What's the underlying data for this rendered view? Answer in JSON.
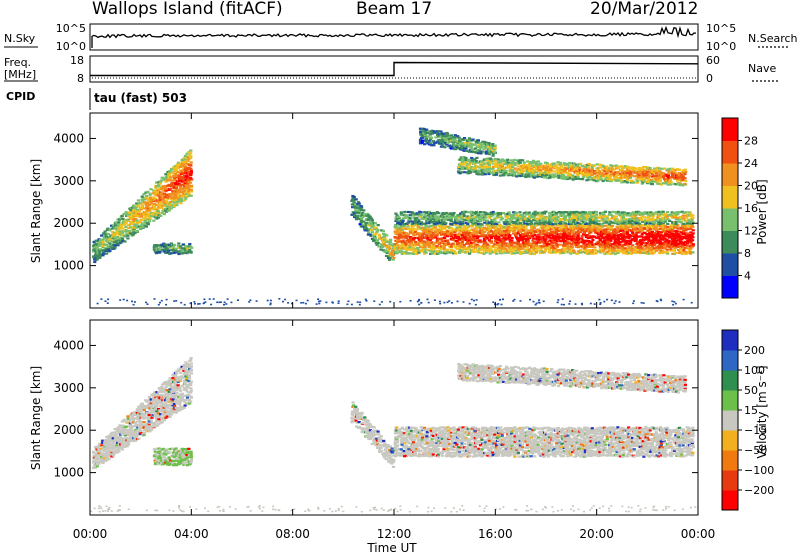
{
  "header": {
    "station": "Wallops Island (fitACF)",
    "beam": "Beam 17",
    "date": "20/Mar/2012"
  },
  "noise_panel": {
    "left_label": "N.Sky",
    "right_label": "N.Search",
    "left_ticks": [
      "10^5",
      "10^0"
    ],
    "right_ticks": [
      "10^5",
      "10^0"
    ]
  },
  "freq_panel": {
    "left_label_line1": "Freq.",
    "left_label_line2": "[MHz]",
    "right_label": "Nave",
    "left_ticks": [
      "18",
      "8"
    ],
    "right_ticks": [
      "60",
      "0"
    ]
  },
  "cpid_panel": {
    "label": "CPID",
    "text": "tau (fast) 503"
  },
  "colors": {
    "power": [
      "#0000ff",
      "#1e4fa5",
      "#3d8a5a",
      "#78c06e",
      "#f0c020",
      "#f09020",
      "#f05010",
      "#ff0000"
    ],
    "velocity": [
      "#1e2fbf",
      "#2e66c4",
      "#2f8f4f",
      "#6cc04a",
      "#c8c8c0",
      "#f2b020",
      "#f07a10",
      "#e83a10",
      "#ff0000"
    ]
  },
  "chart_data": [
    {
      "type": "heatmap",
      "quantity": "power",
      "ylabel": "Slant Range [km]",
      "xlim": [
        0,
        24
      ],
      "ylim": [
        0,
        4600
      ],
      "yticks": [
        "1000",
        "2000",
        "3000",
        "4000"
      ],
      "colorbar_label": "Power [dB]",
      "colorbar_ticks": [
        "4",
        "8",
        "12",
        "16",
        "20",
        "24",
        "28"
      ],
      "colorbar_range": [
        0,
        32
      ],
      "regions": [
        {
          "t": [
            0.1,
            4.0
          ],
          "r_lo": [
            1100,
            2700
          ],
          "r_hi": [
            1600,
            3800
          ],
          "level": [
            0.35,
            0.8
          ]
        },
        {
          "t": [
            2.5,
            4.0
          ],
          "r_lo": [
            1300,
            1300
          ],
          "r_hi": [
            1550,
            1550
          ],
          "level": [
            0.3,
            0.4
          ]
        },
        {
          "t": [
            10.3,
            12.0
          ],
          "r_lo": [
            2200,
            1000
          ],
          "r_hi": [
            2700,
            1500
          ],
          "level": [
            0.3,
            0.6
          ]
        },
        {
          "t": [
            12.0,
            23.8
          ],
          "r_lo": [
            1300,
            1300
          ],
          "r_hi": [
            2000,
            2000
          ],
          "level": [
            0.7,
            0.95
          ]
        },
        {
          "t": [
            12.0,
            23.8
          ],
          "r_lo": [
            2000,
            2000
          ],
          "r_hi": [
            2300,
            2300
          ],
          "level": [
            0.35,
            0.55
          ]
        },
        {
          "t": [
            14.5,
            23.5
          ],
          "r_lo": [
            3200,
            2900
          ],
          "r_hi": [
            3600,
            3300
          ],
          "level": [
            0.45,
            0.75
          ]
        },
        {
          "t": [
            13.0,
            16.0
          ],
          "r_lo": [
            3900,
            3600
          ],
          "r_hi": [
            4300,
            3900
          ],
          "level": [
            0.3,
            0.45
          ]
        }
      ]
    },
    {
      "type": "heatmap",
      "quantity": "velocity",
      "ylabel": "Slant Range [km]",
      "xlabel": "Time UT",
      "xlim": [
        0,
        24
      ],
      "ylim": [
        0,
        4600
      ],
      "xticks": [
        "00:00",
        "04:00",
        "08:00",
        "12:00",
        "16:00",
        "20:00",
        "00:00"
      ],
      "yticks": [
        "1000",
        "2000",
        "3000",
        "4000"
      ],
      "colorbar_label": "Velocity [m s⁻¹]",
      "colorbar_ticks": [
        "200",
        "100",
        "50",
        "15",
        "−15",
        "−50",
        "−100",
        "−200"
      ],
      "colorbar_range": [
        -250,
        250
      ],
      "regions": [
        {
          "t": [
            0.1,
            4.0
          ],
          "r_lo": [
            1100,
            2700
          ],
          "r_hi": [
            1600,
            3800
          ],
          "level": [
            0.5,
            0.5
          ]
        },
        {
          "t": [
            2.5,
            4.0
          ],
          "r_lo": [
            1200,
            1200
          ],
          "r_hi": [
            1600,
            1600
          ],
          "level": [
            0.35,
            0.35
          ]
        },
        {
          "t": [
            10.3,
            12.0
          ],
          "r_lo": [
            2200,
            1100
          ],
          "r_hi": [
            2700,
            1500
          ],
          "level": [
            0.5,
            0.5
          ]
        },
        {
          "t": [
            12.0,
            23.8
          ],
          "r_lo": [
            1400,
            1400
          ],
          "r_hi": [
            2100,
            2100
          ],
          "level": [
            0.5,
            0.5
          ]
        },
        {
          "t": [
            14.5,
            23.5
          ],
          "r_lo": [
            3200,
            2900
          ],
          "r_hi": [
            3600,
            3300
          ],
          "level": [
            0.5,
            0.5
          ]
        }
      ]
    }
  ],
  "noise_series": {
    "sky_level": 0.75,
    "search_level": 0.72
  },
  "freq_series": {
    "t": [
      0.0,
      12.0,
      12.0,
      24.0
    ],
    "freq_mhz": [
      10.5,
      10.5,
      15.5,
      15.0
    ]
  }
}
